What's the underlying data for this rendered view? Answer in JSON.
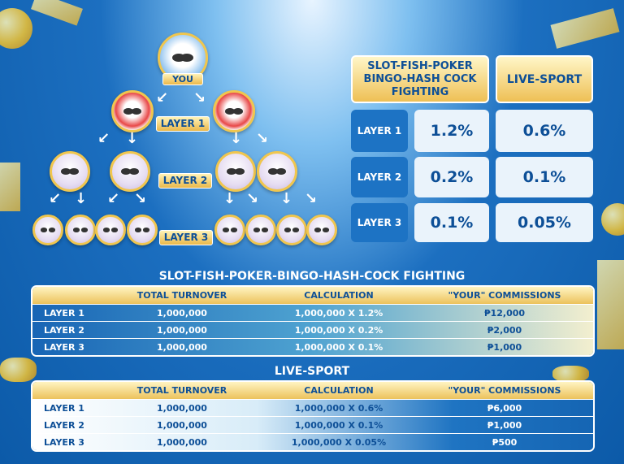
{
  "tree": {
    "you_label": "YOU",
    "layer_labels": [
      "LAYER 1",
      "LAYER 2",
      "LAYER 3"
    ]
  },
  "rate_table": {
    "headers": [
      "SLOT-FISH-POKER BINGO-HASH COCK FIGHTING",
      "LIVE-SPORT"
    ],
    "rows": [
      {
        "layer": "LAYER 1",
        "slot": "1.2%",
        "sport": "0.6%"
      },
      {
        "layer": "LAYER 2",
        "slot": "0.2%",
        "sport": "0.1%"
      },
      {
        "layer": "LAYER 3",
        "slot": "0.1%",
        "sport": "0.05%"
      }
    ]
  },
  "tables": [
    {
      "title": "SLOT-FISH-POKER-BINGO-HASH-COCK FIGHTING",
      "columns": [
        "",
        "TOTAL TURNOVER",
        "CALCULATION",
        "\"YOUR\" COMMISSIONS"
      ],
      "rows": [
        [
          "LAYER 1",
          "1,000,000",
          "1,000,000 X 1.2%",
          "₱12,000"
        ],
        [
          "LAYER 2",
          "1,000,000",
          "1,000,000 X 0.2%",
          "₱2,000"
        ],
        [
          "LAYER 3",
          "1,000,000",
          "1,000,000 X 0.1%",
          "₱1,000"
        ]
      ]
    },
    {
      "title": "LIVE-SPORT",
      "columns": [
        "",
        "TOTAL TURNOVER",
        "CALCULATION",
        "\"YOUR\" COMMISSIONS"
      ],
      "rows": [
        [
          "LAYER 1",
          "1,000,000",
          "1,000,000 X 0.6%",
          "₱6,000"
        ],
        [
          "LAYER 2",
          "1,000,000",
          "1,000,000 X 0.1%",
          "₱1,000"
        ],
        [
          "LAYER 3",
          "1,000,000",
          "1,000,000 X 0.05%",
          "₱500"
        ]
      ]
    }
  ],
  "colors": {
    "brand_blue": "#1d73c4",
    "gold": "#eec055",
    "text_navy": "#0d4f97"
  }
}
